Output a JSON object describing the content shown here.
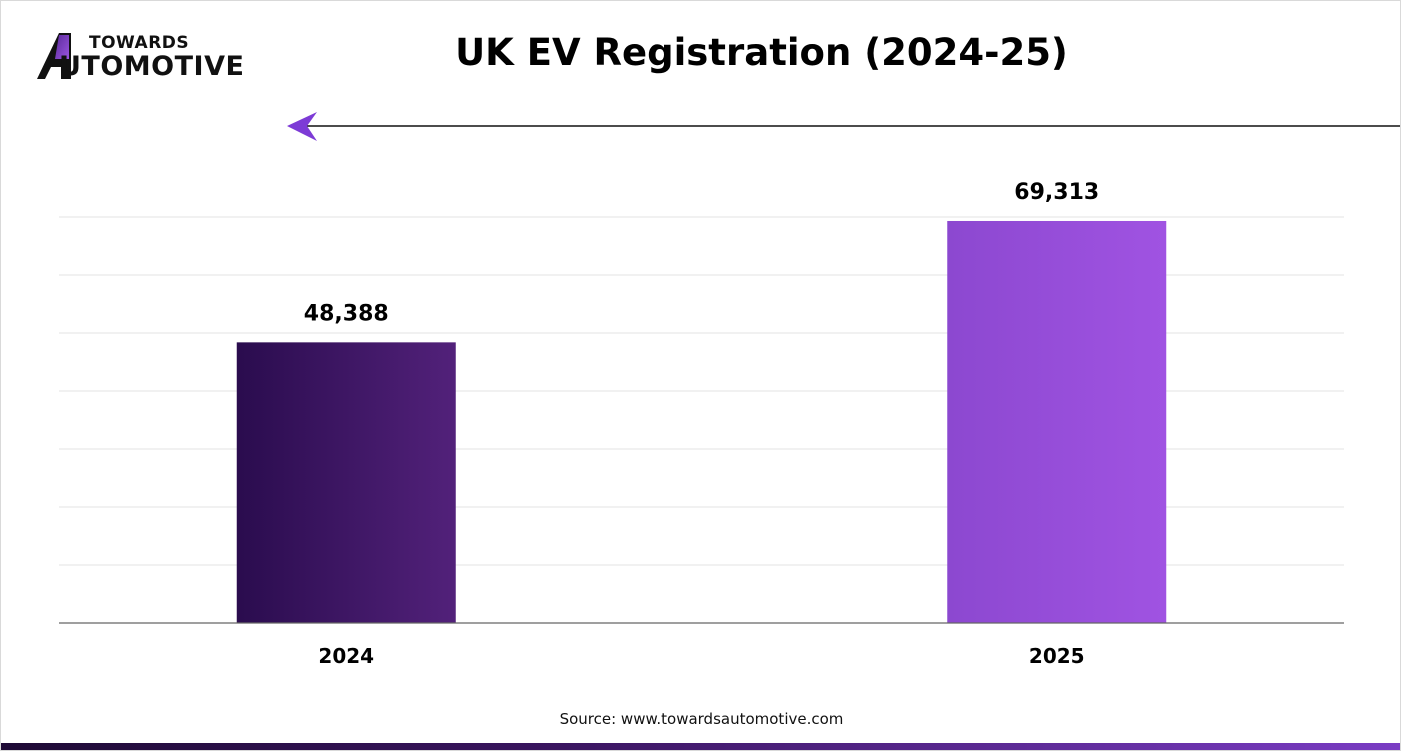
{
  "brand": {
    "line1": "TOWARDS",
    "line2": "UTOMOTIVE"
  },
  "title": "UK EV Registration (2024-25)",
  "source": "Source: www.towardsautomotive.com",
  "colors": {
    "bar_2024_start": "#2a0c4e",
    "bar_2024_end": "#52217a",
    "bar_2025_start": "#8c48d0",
    "bar_2025_end": "#a053e2",
    "accent": "#7d3bd6"
  },
  "chart_data": {
    "type": "bar",
    "categories": [
      "2024",
      "2025"
    ],
    "values": [
      48388,
      69313
    ],
    "data_labels": [
      "48,388",
      "69,313"
    ],
    "title": "UK EV Registration (2024-25)",
    "xlabel": "",
    "ylabel": "",
    "ylim": [
      0,
      70000
    ],
    "grid": true,
    "legend": "none"
  }
}
